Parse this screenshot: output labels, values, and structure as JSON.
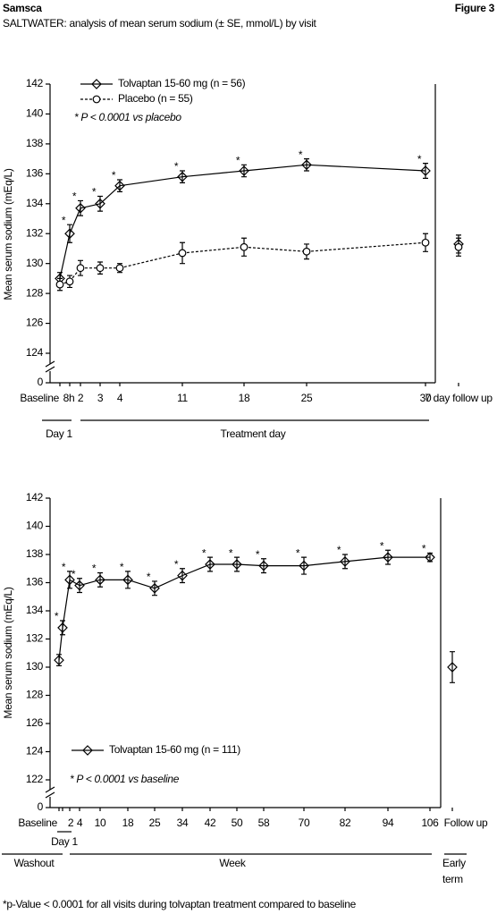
{
  "header": {
    "title": "Samsca",
    "figure": "Figure 3",
    "subtitle": "SALTWATER: analysis of mean serum sodium (± SE, mmol/L) by visit"
  },
  "chart_data": [
    {
      "type": "line",
      "y_label": "Mean serum sodium (mEq/L)",
      "ylim": [
        122,
        142
      ],
      "yticks": [
        124,
        126,
        128,
        130,
        132,
        134,
        136,
        138,
        140,
        142
      ],
      "axis_break_label": "0",
      "categories": [
        "Baseline",
        "8h",
        "2",
        "3",
        "4",
        "11",
        "18",
        "25",
        "30",
        "7 day follow up"
      ],
      "groups": [
        "Day 1",
        "Treatment day"
      ],
      "significance_marker": "*",
      "annotation": "* P < 0.0001 vs placebo",
      "series": [
        {
          "name": "Tolvaptan 15-60 mg (n = 56)",
          "color": "#000000",
          "marker": "diamond",
          "line_style": "solid",
          "values": [
            129.0,
            132.0,
            133.7,
            134.0,
            135.2,
            135.8,
            136.2,
            136.6,
            136.2,
            131.3
          ],
          "errors": [
            0.4,
            0.6,
            0.5,
            0.5,
            0.4,
            0.4,
            0.4,
            0.4,
            0.5,
            0.6
          ],
          "significant": [
            false,
            true,
            true,
            true,
            true,
            true,
            true,
            true,
            true,
            false
          ]
        },
        {
          "name": "Placebo (n = 55)",
          "color": "#000000",
          "marker": "circle",
          "line_style": "dashed",
          "values": [
            128.6,
            128.8,
            129.7,
            129.7,
            129.7,
            130.7,
            131.1,
            130.8,
            131.4,
            131.1
          ],
          "errors": [
            0.4,
            0.4,
            0.5,
            0.4,
            0.3,
            0.7,
            0.6,
            0.5,
            0.6,
            0.6
          ],
          "significant": [
            false,
            false,
            false,
            false,
            false,
            false,
            false,
            false,
            false,
            false
          ]
        }
      ]
    },
    {
      "type": "line",
      "y_label": "Mean serum sodium (mEq/L)",
      "ylim": [
        122,
        142
      ],
      "yticks": [
        122,
        124,
        126,
        128,
        130,
        132,
        134,
        136,
        138,
        140,
        142
      ],
      "axis_break_label": "0",
      "categories": [
        "Baseline",
        null,
        "2",
        "4",
        "10",
        "18",
        "25",
        "34",
        "42",
        "50",
        "58",
        "70",
        "82",
        "94",
        "106",
        "Follow up"
      ],
      "groups": [
        "Day 1",
        "Washout",
        "Week",
        [
          "Early",
          "term"
        ]
      ],
      "significance_marker": "*",
      "annotation": "* P < 0.0001 vs baseline",
      "series": [
        {
          "name": "Tolvaptan 15-60 mg (n = 111)",
          "color": "#000000",
          "marker": "diamond",
          "line_style": "solid",
          "values": [
            130.5,
            132.8,
            136.2,
            135.8,
            136.2,
            136.2,
            135.6,
            136.5,
            137.3,
            137.3,
            137.2,
            137.2,
            137.5,
            137.8,
            137.8,
            130.0
          ],
          "errors": [
            0.4,
            0.5,
            0.6,
            0.5,
            0.5,
            0.6,
            0.5,
            0.5,
            0.5,
            0.5,
            0.5,
            0.6,
            0.5,
            0.5,
            0.3,
            1.1
          ],
          "significant": [
            false,
            true,
            true,
            true,
            true,
            true,
            true,
            true,
            true,
            true,
            true,
            true,
            true,
            true,
            true,
            false
          ]
        }
      ]
    }
  ],
  "footnote": "*p-Value < 0.0001 for all visits during tolvaptan treatment compared to baseline"
}
